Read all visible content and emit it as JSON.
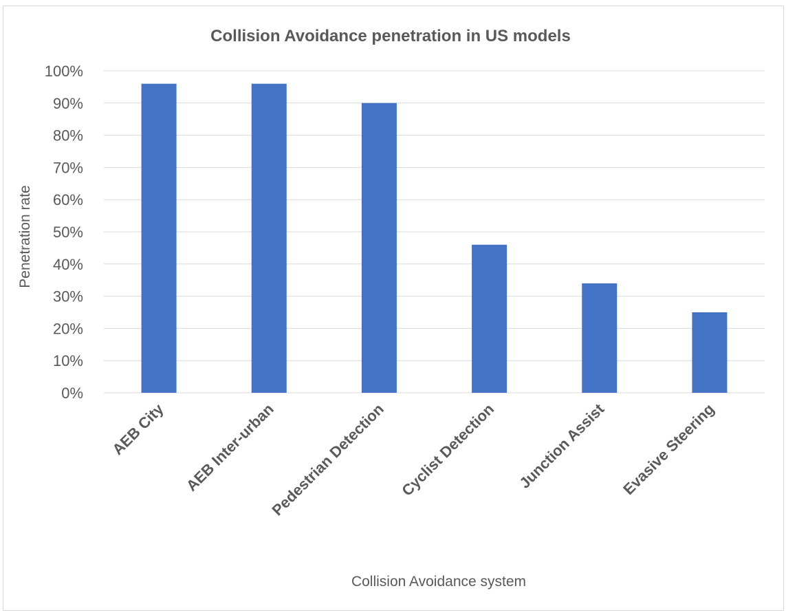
{
  "chart_data": {
    "type": "bar",
    "title": "Collision Avoidance penetration in US models",
    "xlabel": "Collision Avoidance system",
    "ylabel": "Penetration rate",
    "categories": [
      "AEB City",
      "AEB Inter-urban",
      "Pedestrian Detection",
      "Cyclist Detection",
      "Junction Assist",
      "Evasive Steering"
    ],
    "values": [
      0.96,
      0.96,
      0.9,
      0.46,
      0.34,
      0.25
    ],
    "ylim": [
      0,
      1
    ],
    "yticks": [
      "0%",
      "10%",
      "20%",
      "30%",
      "40%",
      "50%",
      "60%",
      "70%",
      "80%",
      "90%",
      "100%"
    ],
    "grid": true,
    "legend": "none",
    "bar_color": "#4472C4"
  }
}
